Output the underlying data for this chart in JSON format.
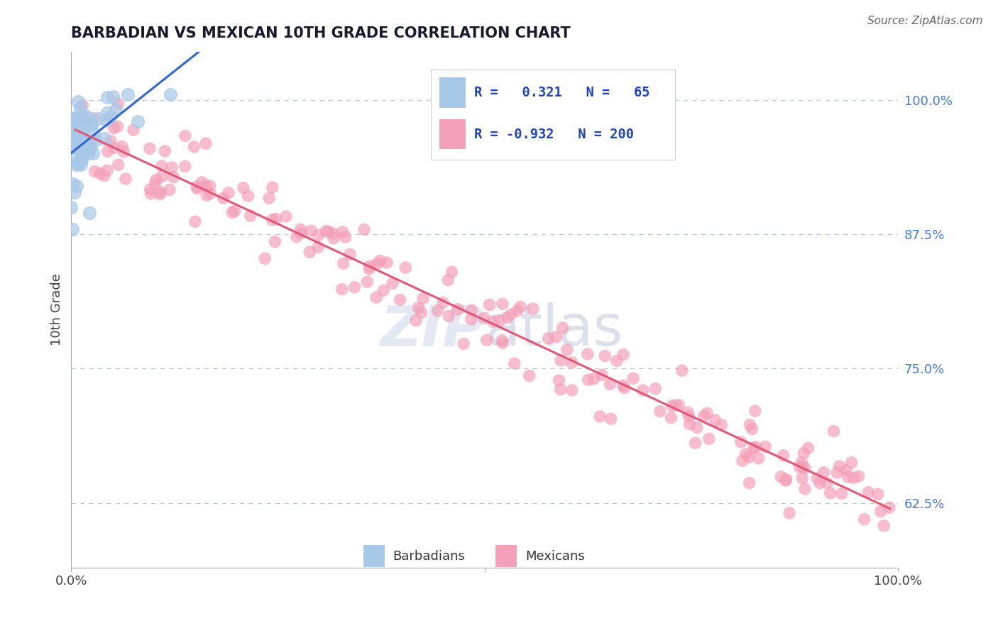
{
  "title": "BARBADIAN VS MEXICAN 10TH GRADE CORRELATION CHART",
  "source_text": "Source: ZipAtlas.com",
  "ylabel": "10th Grade",
  "x_min": 0.0,
  "x_max": 1.0,
  "y_min": 0.565,
  "y_max": 1.045,
  "yticks_right": [
    0.625,
    0.75,
    0.875,
    1.0
  ],
  "ytick_labels_right": [
    "62.5%",
    "75.0%",
    "87.5%",
    "100.0%"
  ],
  "barbadian_R": 0.321,
  "barbadian_N": 65,
  "mexican_R": -0.932,
  "mexican_N": 200,
  "barbadian_color": "#a8c8e8",
  "mexican_color": "#f4a0b8",
  "barbadian_line_color": "#3366cc",
  "mexican_line_color": "#e05878",
  "legend_label_barbadian": "Barbadians",
  "legend_label_mexican": "Mexicans",
  "background_color": "#ffffff",
  "grid_color": "#b8c8d8",
  "watermark_color": "#ccd8e8",
  "title_color": "#1a1a2e",
  "source_color": "#666666",
  "axis_color": "#aaaaaa",
  "tick_color": "#444444"
}
